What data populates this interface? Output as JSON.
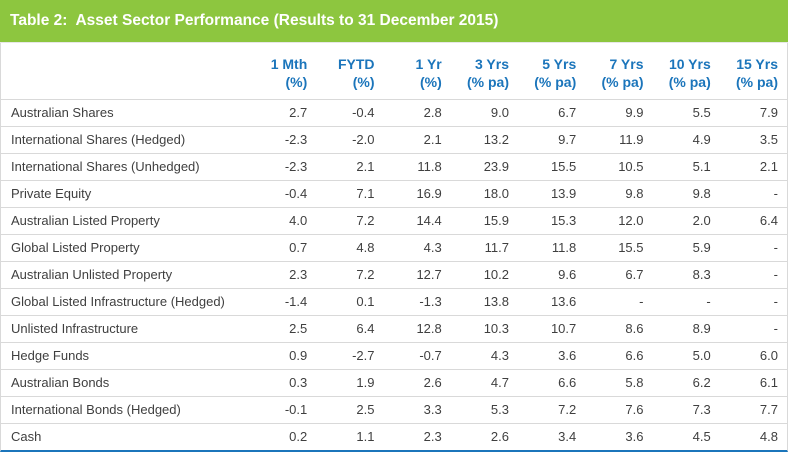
{
  "colors": {
    "header_bar_green": "#8dc63f",
    "title_text": "#ffffff",
    "column_header_text": "#1b75bb",
    "body_text": "#3f3f3f",
    "row_separator": "#d9d9d9",
    "bottom_rule_blue": "#1b75bb"
  },
  "chart_data": {
    "type": "table",
    "title": "Table 2:  Asset Sector Performance (Results to 31 December 2015)",
    "columns": [
      {
        "period": "1 Mth",
        "unit": "(%)"
      },
      {
        "period": "FYTD",
        "unit": "(%)"
      },
      {
        "period": "1 Yr",
        "unit": "(%)"
      },
      {
        "period": "3 Yrs",
        "unit": "(% pa)"
      },
      {
        "period": "5 Yrs",
        "unit": "(% pa)"
      },
      {
        "period": "7 Yrs",
        "unit": "(% pa)"
      },
      {
        "period": "10 Yrs",
        "unit": "(% pa)"
      },
      {
        "period": "15 Yrs",
        "unit": "(% pa)"
      }
    ],
    "rows": [
      {
        "sector": "Australian Shares",
        "values": [
          "2.7",
          "-0.4",
          "2.8",
          "9.0",
          "6.7",
          "9.9",
          "5.5",
          "7.9"
        ]
      },
      {
        "sector": "International Shares (Hedged)",
        "values": [
          "-2.3",
          "-2.0",
          "2.1",
          "13.2",
          "9.7",
          "11.9",
          "4.9",
          "3.5"
        ]
      },
      {
        "sector": "International Shares (Unhedged)",
        "values": [
          "-2.3",
          "2.1",
          "11.8",
          "23.9",
          "15.5",
          "10.5",
          "5.1",
          "2.1"
        ]
      },
      {
        "sector": "Private Equity",
        "values": [
          "-0.4",
          "7.1",
          "16.9",
          "18.0",
          "13.9",
          "9.8",
          "9.8",
          "-"
        ]
      },
      {
        "sector": "Australian Listed Property",
        "values": [
          "4.0",
          "7.2",
          "14.4",
          "15.9",
          "15.3",
          "12.0",
          "2.0",
          "6.4"
        ]
      },
      {
        "sector": "Global Listed Property",
        "values": [
          "0.7",
          "4.8",
          "4.3",
          "11.7",
          "11.8",
          "15.5",
          "5.9",
          "-"
        ]
      },
      {
        "sector": "Australian Unlisted Property",
        "values": [
          "2.3",
          "7.2",
          "12.7",
          "10.2",
          "9.6",
          "6.7",
          "8.3",
          "-"
        ]
      },
      {
        "sector": "Global Listed Infrastructure (Hedged)",
        "values": [
          "-1.4",
          "0.1",
          "-1.3",
          "13.8",
          "13.6",
          "-",
          "-",
          "-"
        ]
      },
      {
        "sector": "Unlisted Infrastructure",
        "values": [
          "2.5",
          "6.4",
          "12.8",
          "10.3",
          "10.7",
          "8.6",
          "8.9",
          "-"
        ]
      },
      {
        "sector": "Hedge Funds",
        "values": [
          "0.9",
          "-2.7",
          "-0.7",
          "4.3",
          "3.6",
          "6.6",
          "5.0",
          "6.0"
        ]
      },
      {
        "sector": "Australian Bonds",
        "values": [
          "0.3",
          "1.9",
          "2.6",
          "4.7",
          "6.6",
          "5.8",
          "6.2",
          "6.1"
        ]
      },
      {
        "sector": "International Bonds (Hedged)",
        "values": [
          "-0.1",
          "2.5",
          "3.3",
          "5.3",
          "7.2",
          "7.6",
          "7.3",
          "7.7"
        ]
      },
      {
        "sector": "Cash",
        "values": [
          "0.2",
          "1.1",
          "2.3",
          "2.6",
          "3.4",
          "3.6",
          "4.5",
          "4.8"
        ]
      }
    ]
  }
}
